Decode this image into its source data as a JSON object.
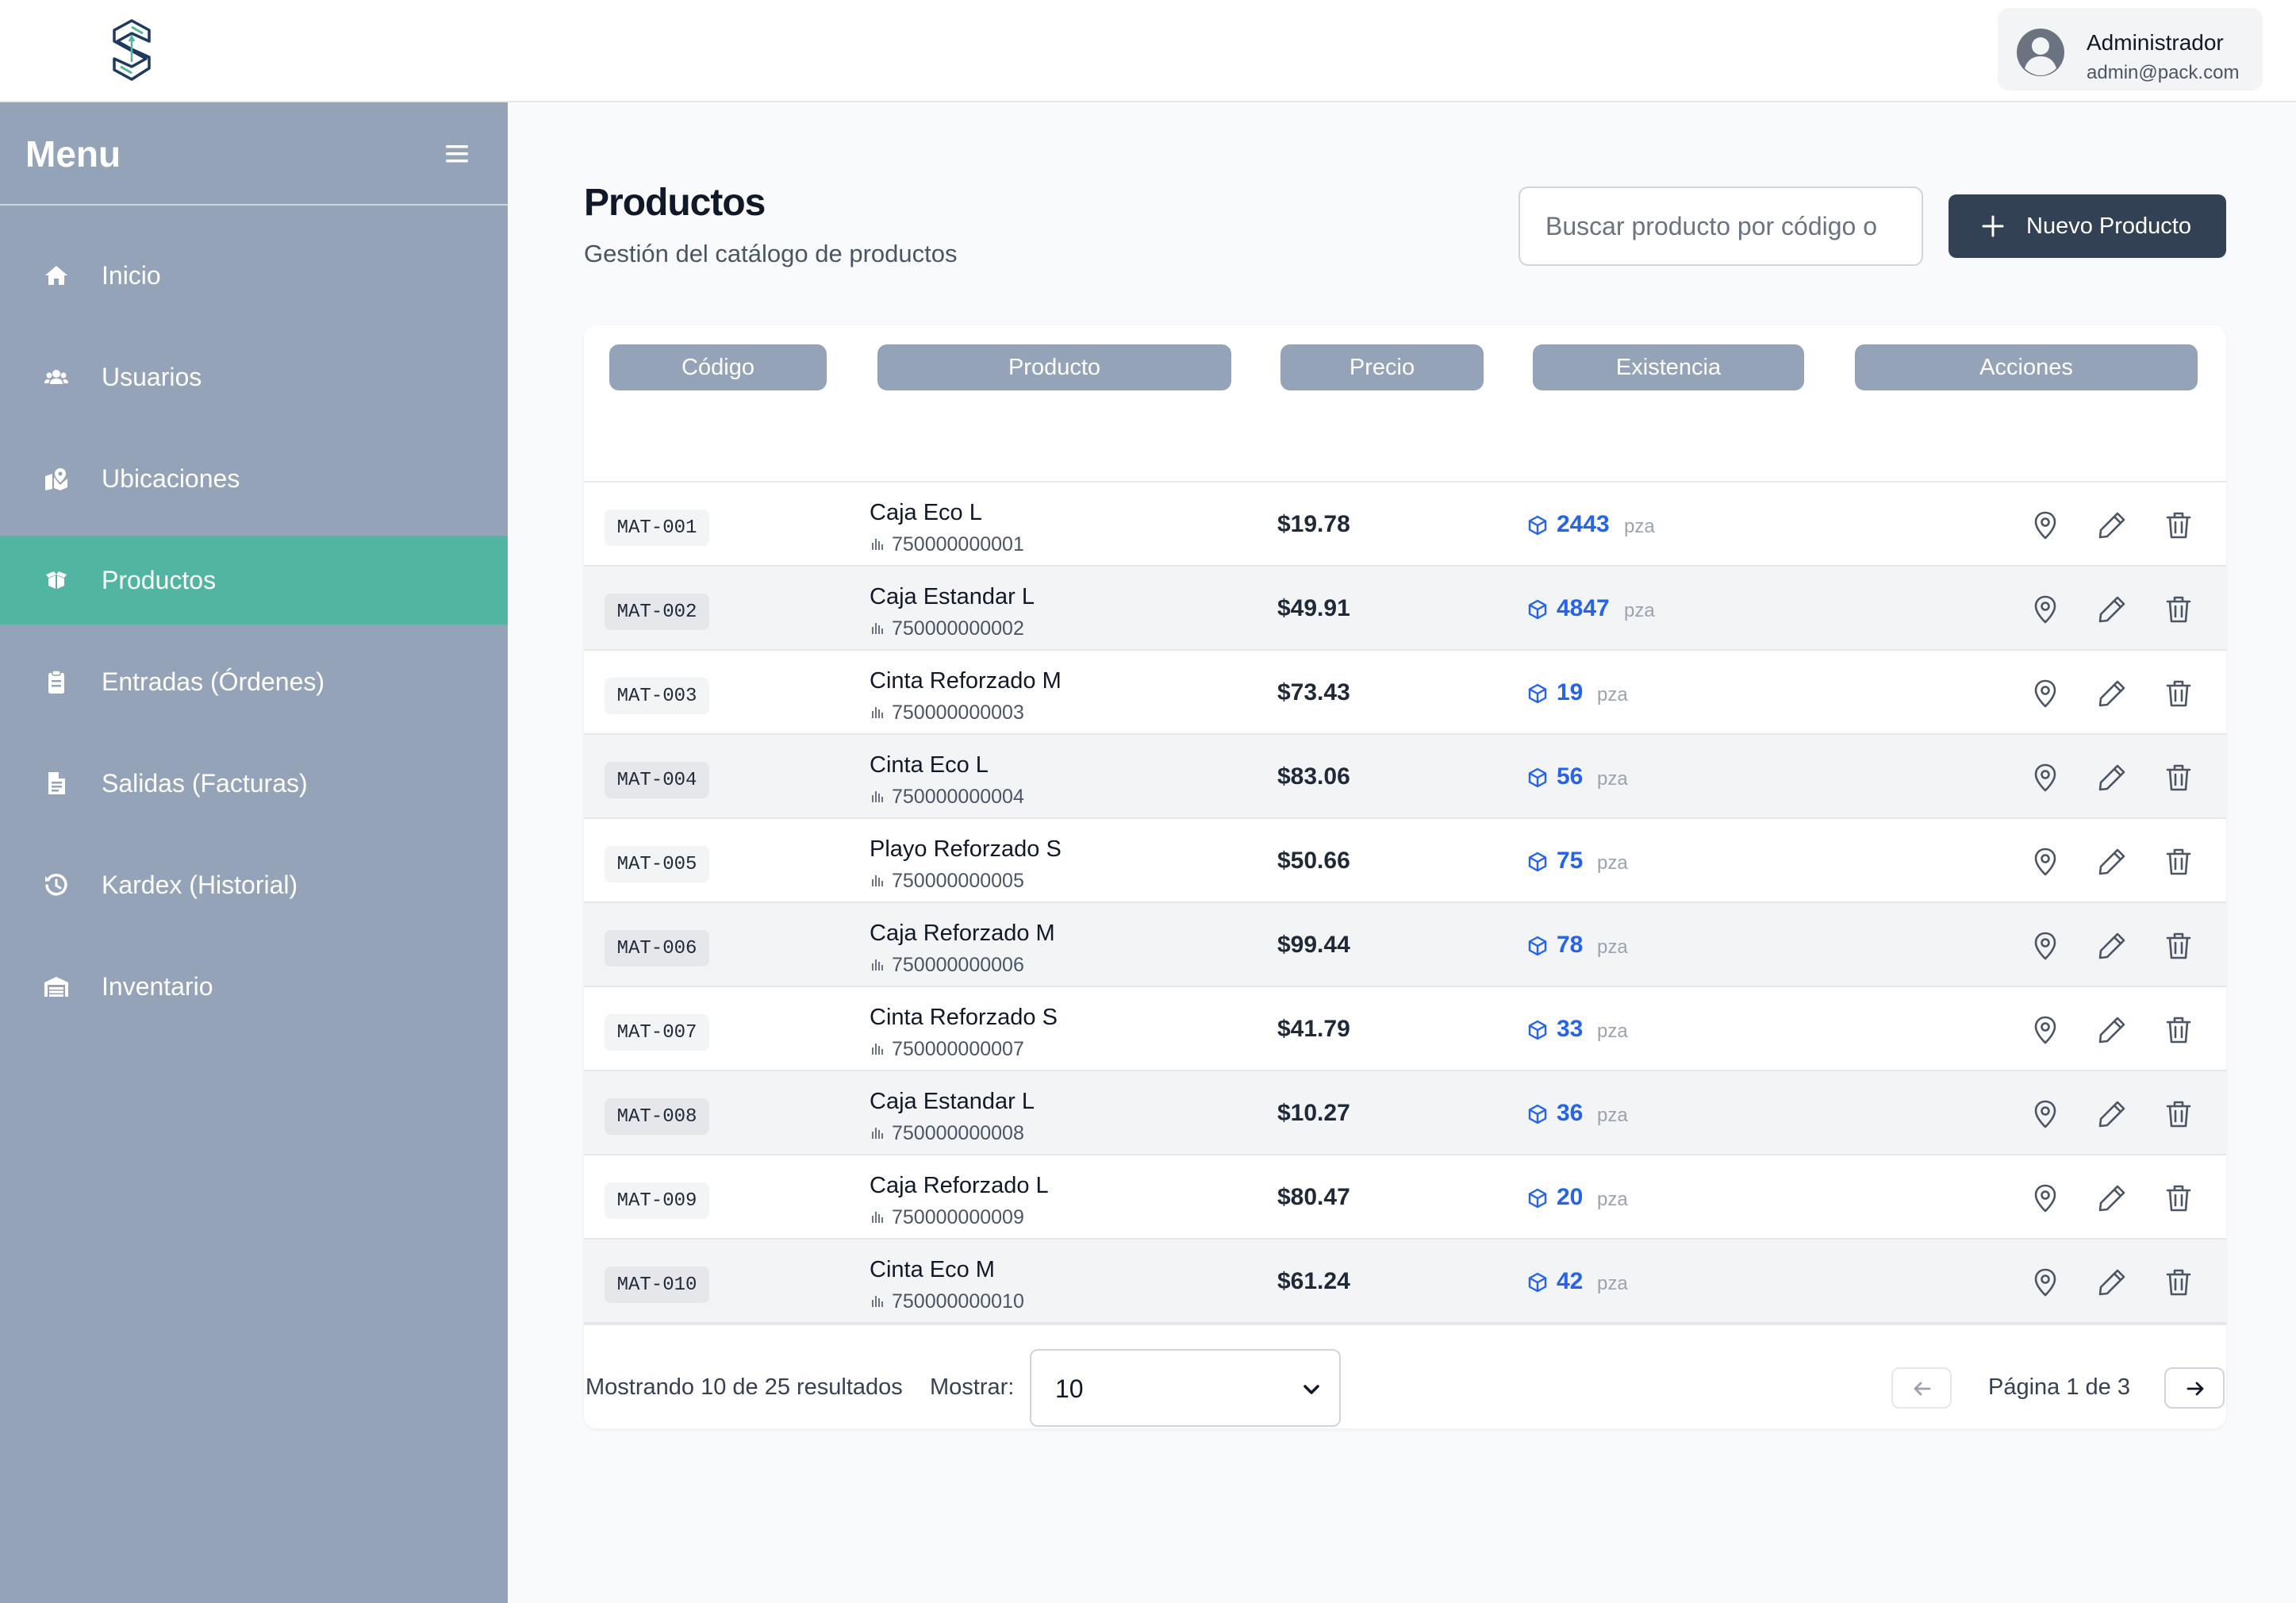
{
  "header": {
    "user": {
      "name": "Administrador",
      "email": "admin@pack.com"
    }
  },
  "sidebar": {
    "title": "Menu",
    "items": [
      {
        "label": "Inicio",
        "icon": "home-icon",
        "active": false
      },
      {
        "label": "Usuarios",
        "icon": "users-icon",
        "active": false
      },
      {
        "label": "Ubicaciones",
        "icon": "map-location-icon",
        "active": false
      },
      {
        "label": "Productos",
        "icon": "boxes-icon",
        "active": true
      },
      {
        "label": "Entradas (Órdenes)",
        "icon": "clipboard-icon",
        "active": false
      },
      {
        "label": "Salidas (Facturas)",
        "icon": "file-invoice-icon",
        "active": false
      },
      {
        "label": "Kardex (Historial)",
        "icon": "history-icon",
        "active": false
      },
      {
        "label": "Inventario",
        "icon": "warehouse-icon",
        "active": false
      }
    ]
  },
  "main": {
    "title": "Productos",
    "subtitle": "Gestión del catálogo de productos",
    "search": {
      "placeholder": "Buscar producto por código o",
      "value": ""
    },
    "new_button_label": "Nuevo Producto"
  },
  "table": {
    "columns": [
      "Código",
      "Producto",
      "Precio",
      "Existencia",
      "Acciones"
    ],
    "rows": [
      {
        "code": "MAT-001",
        "name": "Caja Eco L",
        "barcode": "750000000001",
        "price": "$19.78",
        "stock": "2443",
        "unit": "pza"
      },
      {
        "code": "MAT-002",
        "name": "Caja Estandar L",
        "barcode": "750000000002",
        "price": "$49.91",
        "stock": "4847",
        "unit": "pza"
      },
      {
        "code": "MAT-003",
        "name": "Cinta Reforzado M",
        "barcode": "750000000003",
        "price": "$73.43",
        "stock": "19",
        "unit": "pza"
      },
      {
        "code": "MAT-004",
        "name": "Cinta Eco L",
        "barcode": "750000000004",
        "price": "$83.06",
        "stock": "56",
        "unit": "pza"
      },
      {
        "code": "MAT-005",
        "name": "Playo Reforzado S",
        "barcode": "750000000005",
        "price": "$50.66",
        "stock": "75",
        "unit": "pza"
      },
      {
        "code": "MAT-006",
        "name": "Caja Reforzado M",
        "barcode": "750000000006",
        "price": "$99.44",
        "stock": "78",
        "unit": "pza"
      },
      {
        "code": "MAT-007",
        "name": "Cinta Reforzado S",
        "barcode": "750000000007",
        "price": "$41.79",
        "stock": "33",
        "unit": "pza"
      },
      {
        "code": "MAT-008",
        "name": "Caja Estandar L",
        "barcode": "750000000008",
        "price": "$10.27",
        "stock": "36",
        "unit": "pza"
      },
      {
        "code": "MAT-009",
        "name": "Caja Reforzado L",
        "barcode": "750000000009",
        "price": "$80.47",
        "stock": "20",
        "unit": "pza"
      },
      {
        "code": "MAT-010",
        "name": "Cinta Eco M",
        "barcode": "750000000010",
        "price": "$61.24",
        "stock": "42",
        "unit": "pza"
      }
    ]
  },
  "pagination": {
    "results_text": "Mostrando 10 de 25 resultados",
    "show_label": "Mostrar:",
    "page_size": "10",
    "page_info": "Página 1 de 3"
  },
  "colors": {
    "sidebar_bg": "#94a3b8",
    "sidebar_active": "#52b5a2",
    "primary_button": "#334155",
    "stock_accent": "#2563eb"
  }
}
